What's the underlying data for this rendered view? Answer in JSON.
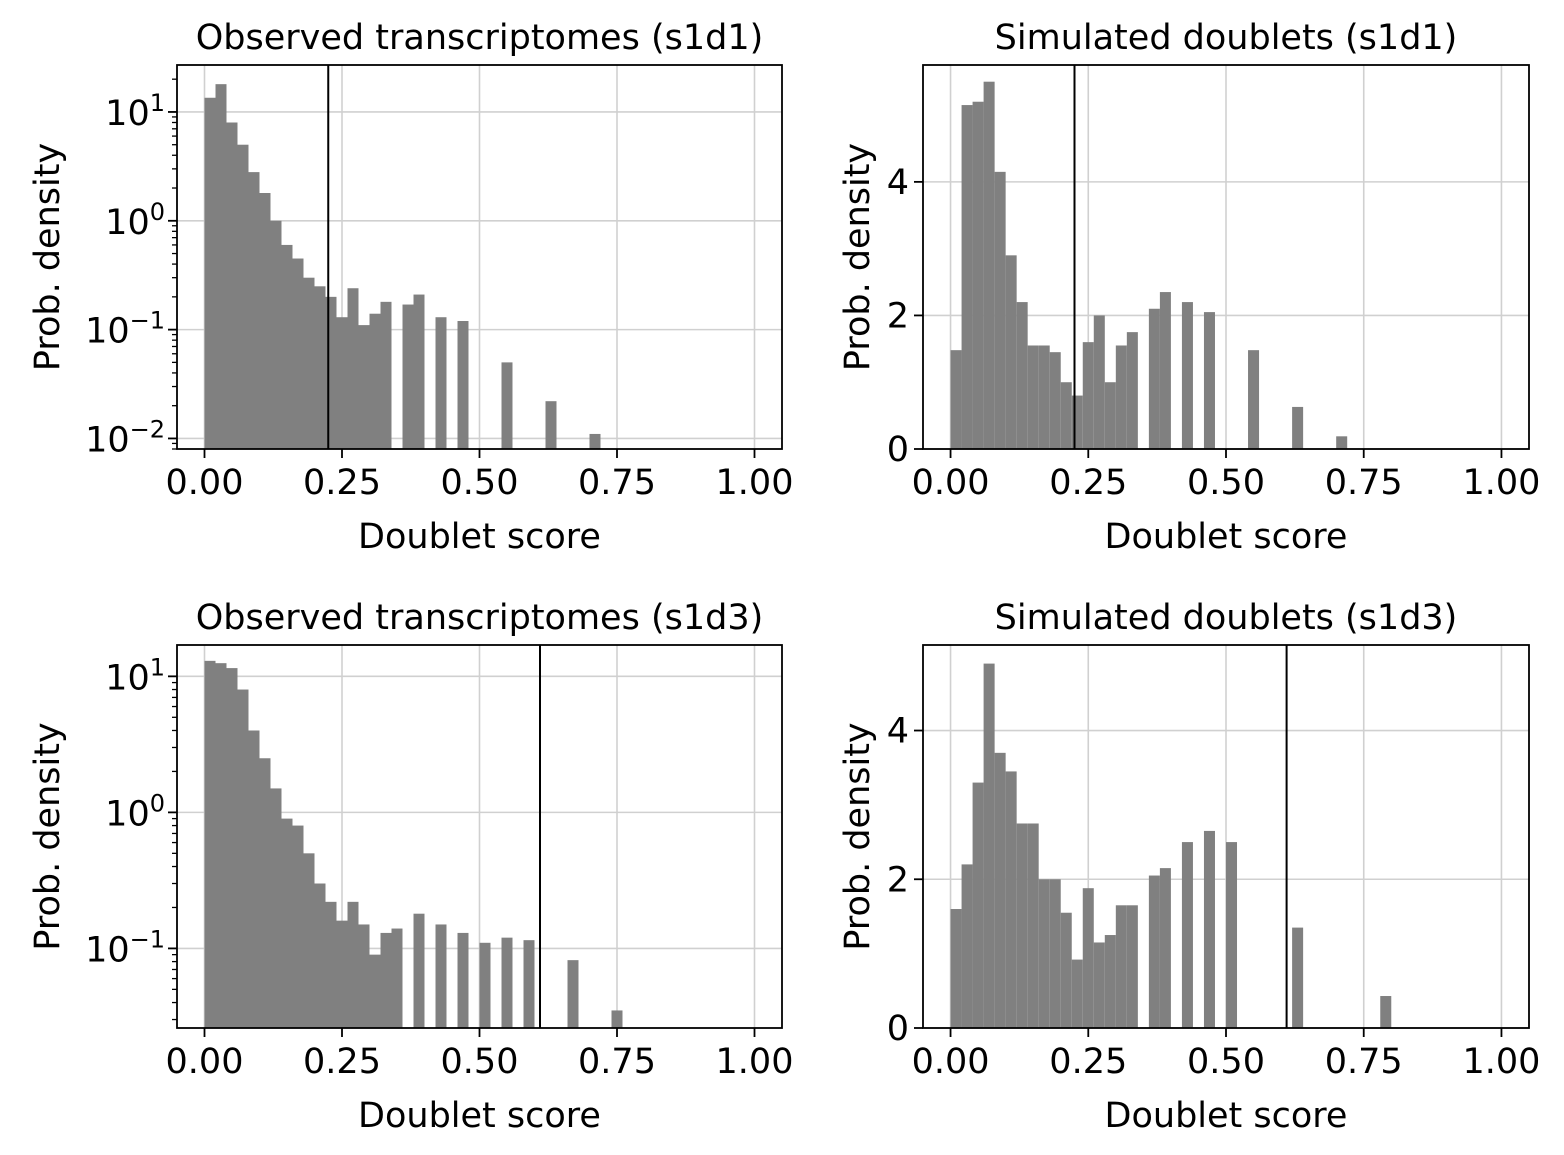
{
  "chart_data": [
    {
      "type": "bar",
      "title": "Observed transcriptomes  (s1d1)",
      "xlabel": "Doublet score",
      "ylabel": "Prob. density",
      "yscale": "log",
      "xlim": [
        -0.05,
        1.05
      ],
      "ylim": [
        0.008,
        27
      ],
      "xticks": [
        "0.00",
        "0.25",
        "0.50",
        "0.75",
        "1.00"
      ],
      "yticks": [
        {
          "base": "10",
          "exp": "1",
          "value": 10
        },
        {
          "base": "10",
          "exp": "0",
          "value": 1
        },
        {
          "base": "10",
          "exp": "−1",
          "value": 0.1
        },
        {
          "base": "10",
          "exp": "−2",
          "value": 0.01
        }
      ],
      "threshold": 0.225,
      "bar_color": "#808080",
      "grid": true,
      "bins": {
        "start": 0.0,
        "width": 0.02
      },
      "values": [
        13.5,
        18.0,
        8.0,
        5.0,
        2.8,
        1.8,
        1.0,
        0.6,
        0.45,
        0.3,
        0.25,
        0.2,
        0.13,
        0.24,
        0.11,
        0.14,
        0.18,
        0,
        0.17,
        0.21,
        0,
        0.13,
        0,
        0.12,
        0,
        0,
        0,
        0.05,
        0,
        0,
        0,
        0.022,
        0,
        0,
        0,
        0.011,
        0,
        0,
        0,
        0,
        0,
        0,
        0,
        0,
        0,
        0,
        0,
        0,
        0,
        0
      ]
    },
    {
      "type": "bar",
      "title": "Simulated doublets  (s1d1)",
      "xlabel": "Doublet score",
      "ylabel": "Prob. density",
      "yscale": "linear",
      "xlim": [
        -0.05,
        1.05
      ],
      "ylim": [
        0,
        5.75
      ],
      "xticks": [
        "0.00",
        "0.25",
        "0.50",
        "0.75",
        "1.00"
      ],
      "yticks": [
        {
          "label": "0",
          "value": 0
        },
        {
          "label": "2",
          "value": 2
        },
        {
          "label": "4",
          "value": 4
        }
      ],
      "threshold": 0.225,
      "bar_color": "#808080",
      "grid": true,
      "bins": {
        "start": 0.0,
        "width": 0.02
      },
      "values": [
        1.48,
        5.15,
        5.2,
        5.5,
        4.15,
        2.9,
        2.2,
        1.55,
        1.55,
        1.45,
        1.0,
        0.8,
        1.6,
        2.0,
        1.0,
        1.55,
        1.75,
        0,
        2.1,
        2.35,
        0,
        2.2,
        0,
        2.05,
        0,
        0,
        0,
        1.48,
        0,
        0,
        0,
        0.63,
        0,
        0,
        0,
        0.19,
        0,
        0,
        0,
        0,
        0,
        0,
        0,
        0,
        0,
        0,
        0,
        0,
        0,
        0
      ]
    },
    {
      "type": "bar",
      "title": "Observed transcriptomes  (s1d3)",
      "xlabel": "Doublet score",
      "ylabel": "Prob. density",
      "yscale": "log",
      "xlim": [
        -0.05,
        1.05
      ],
      "ylim": [
        0.026,
        17
      ],
      "xticks": [
        "0.00",
        "0.25",
        "0.50",
        "0.75",
        "1.00"
      ],
      "yticks": [
        {
          "base": "10",
          "exp": "1",
          "value": 10
        },
        {
          "base": "10",
          "exp": "0",
          "value": 1
        },
        {
          "base": "10",
          "exp": "−1",
          "value": 0.1
        }
      ],
      "threshold": 0.61,
      "bar_color": "#808080",
      "grid": true,
      "bins": {
        "start": 0.0,
        "width": 0.02
      },
      "values": [
        13.0,
        12.5,
        11.5,
        8.0,
        4.0,
        2.5,
        1.5,
        0.9,
        0.8,
        0.5,
        0.3,
        0.22,
        0.16,
        0.22,
        0.15,
        0.09,
        0.13,
        0.14,
        0,
        0.18,
        0,
        0.15,
        0,
        0.13,
        0,
        0.11,
        0,
        0.12,
        0,
        0.115,
        0,
        0,
        0,
        0.082,
        0,
        0,
        0,
        0.035,
        0,
        0,
        0,
        0,
        0,
        0,
        0,
        0,
        0,
        0,
        0,
        0
      ]
    },
    {
      "type": "bar",
      "title": "Simulated doublets  (s1d3)",
      "xlabel": "Doublet score",
      "ylabel": "Prob. density",
      "yscale": "linear",
      "xlim": [
        -0.05,
        1.05
      ],
      "ylim": [
        0,
        5.15
      ],
      "xticks": [
        "0.00",
        "0.25",
        "0.50",
        "0.75",
        "1.00"
      ],
      "yticks": [
        {
          "label": "0",
          "value": 0
        },
        {
          "label": "2",
          "value": 2
        },
        {
          "label": "4",
          "value": 4
        }
      ],
      "threshold": 0.61,
      "bar_color": "#808080",
      "grid": true,
      "bins": {
        "start": 0.0,
        "width": 0.02
      },
      "values": [
        1.6,
        2.2,
        3.3,
        4.9,
        3.7,
        3.45,
        2.75,
        2.75,
        2.0,
        2.0,
        1.55,
        0.92,
        1.88,
        1.15,
        1.25,
        1.65,
        1.65,
        0,
        2.05,
        2.15,
        0,
        2.5,
        0,
        2.65,
        0,
        2.5,
        0,
        0,
        0,
        0,
        0,
        1.35,
        0,
        0,
        0,
        0,
        0,
        0,
        0,
        0.43,
        0,
        0,
        0,
        0,
        0,
        0,
        0,
        0,
        0,
        0
      ]
    }
  ]
}
